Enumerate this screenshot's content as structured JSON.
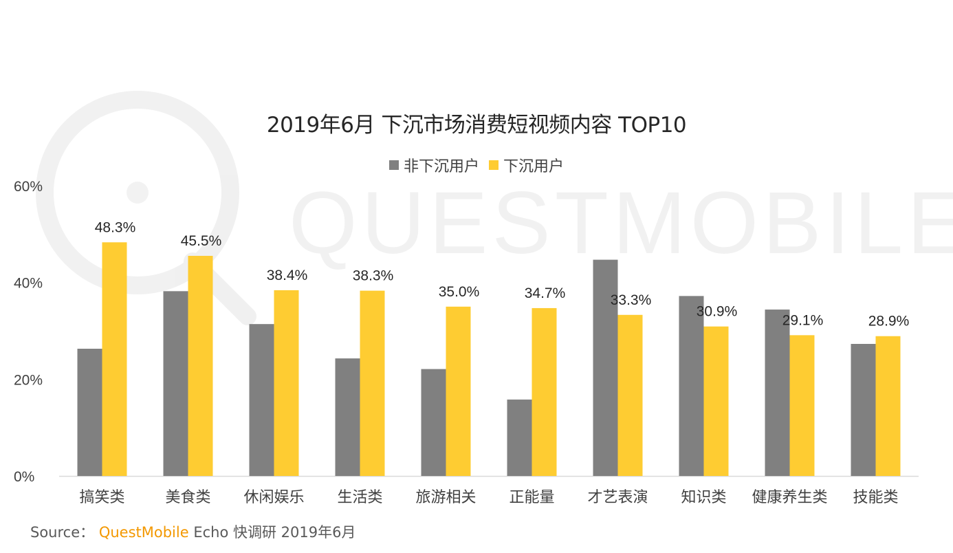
{
  "title": "2019年6月 下沉市场消费短视频内容 TOP10",
  "watermark": "QUESTMOBILE",
  "source": {
    "prefix": "Source：",
    "brand": "QuestMobile",
    "rest": "Echo 快调研 2019年6月"
  },
  "colors": {
    "gray": "#808080",
    "yellow": "#FECC32",
    "axis": "#D9D9D9"
  },
  "chart_data": {
    "type": "bar",
    "categories": [
      "搞笑类",
      "美食类",
      "休闲娱乐",
      "生活类",
      "旅游相关",
      "正能量",
      "才艺表演",
      "知识类",
      "健康养生类",
      "技能类"
    ],
    "series": [
      {
        "name": "非下沉用户",
        "values": [
          26.3,
          38.2,
          31.4,
          24.3,
          22.1,
          15.8,
          44.7,
          37.2,
          34.4,
          27.3
        ],
        "show_labels": false
      },
      {
        "name": "下沉用户",
        "values": [
          48.3,
          45.5,
          38.4,
          38.3,
          35.0,
          34.7,
          33.3,
          30.9,
          29.1,
          28.9
        ],
        "show_labels": true
      }
    ],
    "data_labels": [
      "48.3%",
      "45.5%",
      "38.4%",
      "38.3%",
      "35.0%",
      "34.7%",
      "33.3%",
      "30.9%",
      "29.1%",
      "28.9%"
    ],
    "y_ticks": [
      "0%",
      "20%",
      "40%",
      "60%"
    ],
    "ylim": [
      0,
      60
    ],
    "grid": false,
    "legend_position": "top-center"
  }
}
